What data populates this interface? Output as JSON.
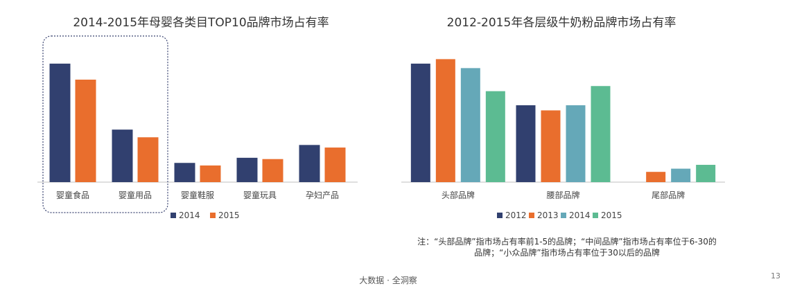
{
  "colors": {
    "2012": "#31406f",
    "2013": "#e96e2d",
    "2014": "#65a8b8",
    "2015": "#5cbb92",
    "highlight_border": "#36406e",
    "axis": "#bfbfbf"
  },
  "chart_data": [
    {
      "type": "bar",
      "title": "2014-2015年母婴各类目TOP10品牌市场占有率",
      "categories": [
        "婴童食品",
        "婴童用品",
        "婴童鞋服",
        "婴童玩具",
        "孕妇产品"
      ],
      "series": [
        {
          "name": "2014",
          "color_key": "2012",
          "values": [
            185,
            82,
            30,
            38,
            58
          ]
        },
        {
          "name": "2015",
          "color_key": "2013",
          "values": [
            160,
            70,
            26,
            36,
            54
          ]
        }
      ],
      "ylim": [
        0,
        200
      ],
      "grid": false,
      "legend": "bottom",
      "highlight": "婴童食品, 婴童用品",
      "xlabel": "",
      "ylabel": ""
    },
    {
      "type": "bar",
      "title": "2012-2015年各层级牛奶粉品牌市场占有率",
      "categories": [
        "头部品牌",
        "腰部品牌",
        "尾部品牌"
      ],
      "series": [
        {
          "name": "2012",
          "color_key": "2012",
          "values": [
            185,
            120,
            0
          ]
        },
        {
          "name": "2013",
          "color_key": "2013",
          "values": [
            192,
            112,
            16
          ]
        },
        {
          "name": "2014",
          "color_key": "2014",
          "values": [
            178,
            120,
            21
          ]
        },
        {
          "name": "2015",
          "color_key": "2015",
          "values": [
            142,
            150,
            27
          ]
        }
      ],
      "ylim": [
        0,
        200
      ],
      "grid": false,
      "legend": "bottom",
      "xlabel": "",
      "ylabel": ""
    }
  ],
  "note": {
    "line1": "注：“头部品牌”指市场占有率前1-5的品牌；“中间品牌”指市场占有率位于6-30的",
    "line2": "品牌；“小众品牌”指市场占有率位于30以后的品牌"
  },
  "footer": "大数据 · 全洞察",
  "page_number": "13"
}
